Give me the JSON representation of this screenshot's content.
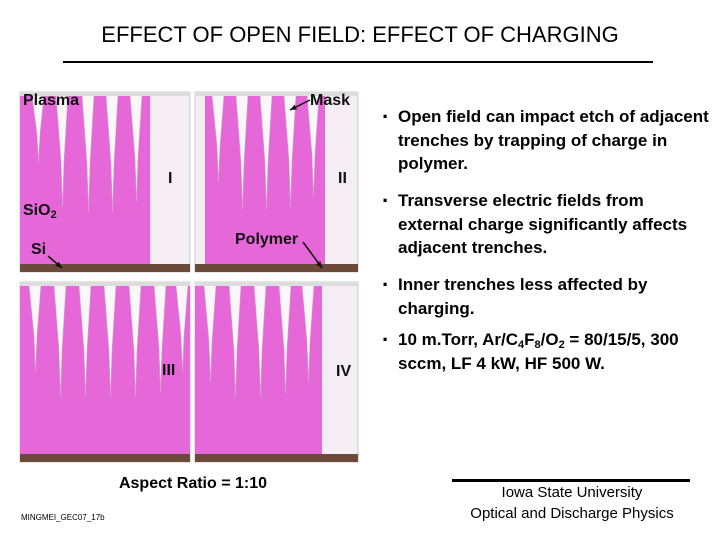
{
  "title": "EFFECT OF OPEN FIELD: EFFECT OF CHARGING",
  "panels": {
    "labels": {
      "plasma": "Plasma",
      "mask": "Mask",
      "i": "I",
      "ii": "II",
      "sio2": [
        "Si",
        "O",
        "2"
      ],
      "si": "Si",
      "polymer": "Polymer",
      "iii": "III",
      "iv": "IV"
    },
    "caption": "Aspect Ratio = 1:10"
  },
  "bullets": [
    [
      "Open field can impact etch of adjacent trenches by trapping of charge in polymer."
    ],
    [
      "Transverse electric fields from external charge significantly affects adjacent trenches."
    ],
    [
      "Inner trenches less affected by charging."
    ],
    [
      "10 m.Torr, Ar/C",
      "4",
      "F",
      "8",
      "/O",
      "2",
      " = 80/15/5, 300 sccm, LF 4 kW, HF 500 W."
    ]
  ],
  "footer": {
    "code": "MINGMEI_GEC07_17b",
    "affiliation": [
      "Iowa State University",
      "Optical and Discharge Physics"
    ]
  }
}
